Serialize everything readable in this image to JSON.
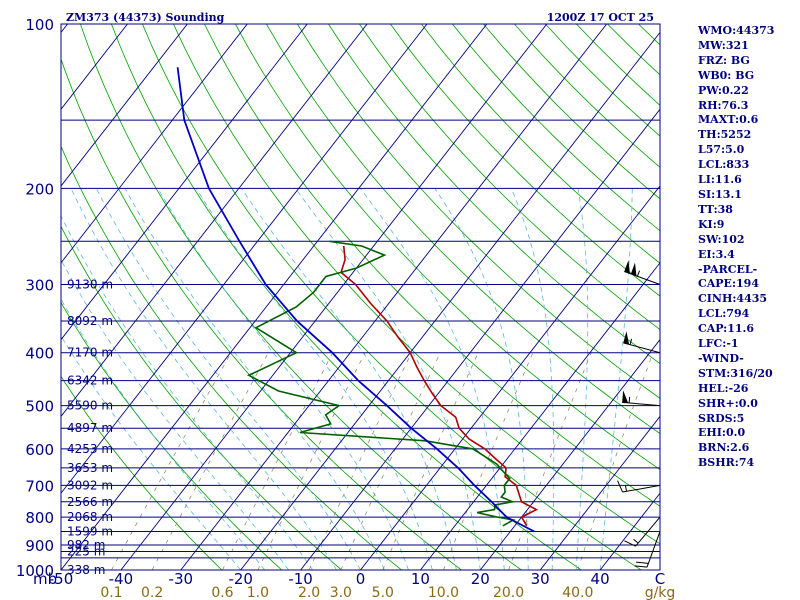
{
  "header": {
    "station": "ZM373 (44373) Sounding",
    "time": "1200Z 17 OCT 25"
  },
  "chart_data": {
    "type": "skew-t",
    "title": "ZM373 (44373) Sounding",
    "valid_time": "1200Z 17 OCT 25",
    "pressure_axis": {
      "unit": "mb",
      "range": [
        1000,
        100
      ],
      "ticks": [
        100,
        200,
        300,
        400,
        500,
        600,
        700,
        800,
        900,
        1000
      ],
      "isobars": [
        100,
        150,
        200,
        250,
        300,
        350,
        400,
        450,
        500,
        550,
        600,
        650,
        700,
        750,
        800,
        850,
        900,
        925,
        950,
        1000
      ]
    },
    "temperature_axis": {
      "unit": "C",
      "range": [
        -50,
        50
      ],
      "ticks": [
        "-50",
        "-40",
        "-30",
        "-20",
        "-10",
        "0",
        "10",
        "20",
        "30",
        "40",
        "C"
      ]
    },
    "mixing_ratio_axis": {
      "unit": "g/kg",
      "ticks": [
        "0.1",
        "0.2",
        "0.6",
        "1.0",
        "2.0",
        "3.0",
        "5.0",
        "10.0",
        "20.0",
        "40.0"
      ],
      "label": "g/kg"
    },
    "height_labels": [
      {
        "p": 300,
        "label": "9130 m"
      },
      {
        "p": 350,
        "label": "8092 m"
      },
      {
        "p": 400,
        "label": "7170 m"
      },
      {
        "p": 450,
        "label": "6342 m"
      },
      {
        "p": 500,
        "label": "5590 m"
      },
      {
        "p": 550,
        "label": "4897 m"
      },
      {
        "p": 600,
        "label": "4253 m"
      },
      {
        "p": 650,
        "label": "3653 m"
      },
      {
        "p": 700,
        "label": "3092 m"
      },
      {
        "p": 750,
        "label": "2566 m"
      },
      {
        "p": 800,
        "label": "2068 m"
      },
      {
        "p": 850,
        "label": "1599 m"
      },
      {
        "p": 900,
        "label": "982 m"
      },
      {
        "p": 925,
        "label": "225 m"
      },
      {
        "p": 1000,
        "label": "338 m"
      }
    ],
    "series": [
      {
        "name": "temperature",
        "color": "#b00000",
        "points": [
          {
            "p": 830,
            "t": 22
          },
          {
            "p": 800,
            "t": 20
          },
          {
            "p": 775,
            "t": 21.5
          },
          {
            "p": 750,
            "t": 18
          },
          {
            "p": 700,
            "t": 15
          },
          {
            "p": 675,
            "t": 12
          },
          {
            "p": 650,
            "t": 11
          },
          {
            "p": 625,
            "t": 8
          },
          {
            "p": 600,
            "t": 5
          },
          {
            "p": 575,
            "t": 1
          },
          {
            "p": 550,
            "t": -2
          },
          {
            "p": 525,
            "t": -4
          },
          {
            "p": 500,
            "t": -8
          },
          {
            "p": 475,
            "t": -11
          },
          {
            "p": 450,
            "t": -14
          },
          {
            "p": 425,
            "t": -17
          },
          {
            "p": 400,
            "t": -20
          },
          {
            "p": 375,
            "t": -24
          },
          {
            "p": 350,
            "t": -28
          },
          {
            "p": 325,
            "t": -33
          },
          {
            "p": 300,
            "t": -38
          },
          {
            "p": 285,
            "t": -42
          },
          {
            "p": 270,
            "t": -43
          },
          {
            "p": 255,
            "t": -45
          }
        ]
      },
      {
        "name": "dewpoint",
        "color": "#006000",
        "points": [
          {
            "p": 830,
            "t": 18
          },
          {
            "p": 810,
            "t": 19
          },
          {
            "p": 800,
            "t": 16
          },
          {
            "p": 785,
            "t": 12
          },
          {
            "p": 775,
            "t": 14.5
          },
          {
            "p": 760,
            "t": 14
          },
          {
            "p": 750,
            "t": 16.5
          },
          {
            "p": 735,
            "t": 14
          },
          {
            "p": 720,
            "t": 14
          },
          {
            "p": 700,
            "t": 13
          },
          {
            "p": 680,
            "t": 13
          },
          {
            "p": 660,
            "t": 11
          },
          {
            "p": 640,
            "t": 9
          },
          {
            "p": 600,
            "t": 3
          },
          {
            "p": 580,
            "t": -6
          },
          {
            "p": 560,
            "t": -28
          },
          {
            "p": 540,
            "t": -24
          },
          {
            "p": 520,
            "t": -26
          },
          {
            "p": 500,
            "t": -25
          },
          {
            "p": 470,
            "t": -37
          },
          {
            "p": 440,
            "t": -44
          },
          {
            "p": 400,
            "t": -39
          },
          {
            "p": 360,
            "t": -49
          },
          {
            "p": 330,
            "t": -45
          },
          {
            "p": 310,
            "t": -44
          },
          {
            "p": 290,
            "t": -44
          },
          {
            "p": 280,
            "t": -40
          },
          {
            "p": 265,
            "t": -37
          },
          {
            "p": 255,
            "t": -42
          },
          {
            "p": 250,
            "t": -48
          }
        ]
      },
      {
        "name": "parcel",
        "color": "#0000c0",
        "points": [
          {
            "p": 850,
            "t": 24
          },
          {
            "p": 800,
            "t": 17.5
          },
          {
            "p": 750,
            "t": 13
          },
          {
            "p": 700,
            "t": 8
          },
          {
            "p": 650,
            "t": 3
          },
          {
            "p": 600,
            "t": -3
          },
          {
            "p": 550,
            "t": -10
          },
          {
            "p": 500,
            "t": -17
          },
          {
            "p": 450,
            "t": -25
          },
          {
            "p": 400,
            "t": -33
          },
          {
            "p": 350,
            "t": -43
          },
          {
            "p": 300,
            "t": -53
          },
          {
            "p": 250,
            "t": -63
          },
          {
            "p": 200,
            "t": -75
          },
          {
            "p": 150,
            "t": -88
          },
          {
            "p": 120,
            "t": -96
          }
        ]
      }
    ],
    "wind_barbs": [
      {
        "p": 300,
        "dir": 290,
        "speed": 105
      },
      {
        "p": 400,
        "dir": 285,
        "speed": 55
      },
      {
        "p": 500,
        "dir": 275,
        "speed": 55
      },
      {
        "p": 700,
        "dir": 260,
        "speed": 15
      },
      {
        "p": 800,
        "dir": 220,
        "speed": 15
      },
      {
        "p": 850,
        "dir": 200,
        "speed": 20
      }
    ]
  },
  "stats": [
    "WMO:44373",
    "MW:321",
    "FRZ: BG",
    "WB0: BG",
    "PW:0.22",
    "RH:76.3",
    "MAXT:0.6",
    "TH:5252",
    "L57:5.0",
    "LCL:833",
    "LI:11.6",
    "SI:13.1",
    "TT:38",
    "KI:9",
    "SW:102",
    "EI:3.4",
    "-PARCEL-",
    "CAPE:194",
    "CINH:4435",
    "LCL:794",
    "CAP:11.6",
    "LFC:-1",
    "-WIND-",
    "STM:316/20",
    "HEL:-26",
    "SHR+:0.0",
    "SRDS:5",
    "EHI:0.0",
    "BRN:2.6",
    "BSHR:74"
  ],
  "colors": {
    "frame": "#000080",
    "isobar": "#000080",
    "isotherm": "#000080",
    "dry_adiabat": "#00a000",
    "moist_adiabat": "#5cb8d8",
    "mixing_ratio": "#8b7d5b",
    "mixing_text": "#8b6914"
  }
}
